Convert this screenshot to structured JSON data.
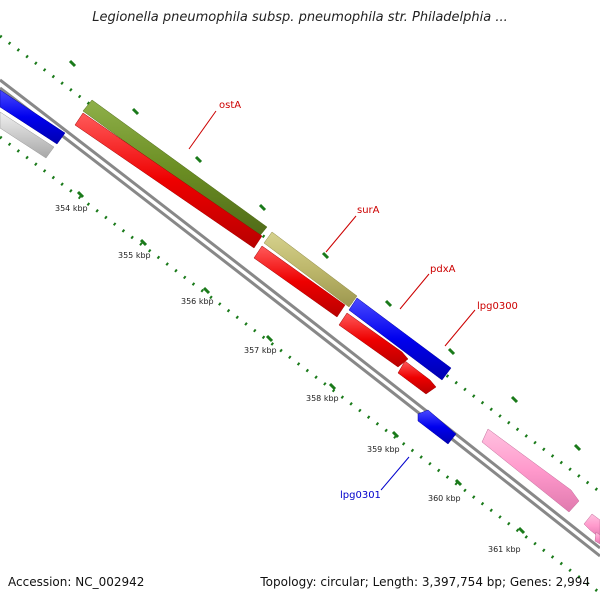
{
  "header": {
    "title": "Legionella pneumophila subsp. pneumophila str. Philadelphia ..."
  },
  "footer": {
    "accession": "Accession: NC_002942",
    "topology": "Topology: circular; Length: 3,397,754 bp; Genes: 2,994"
  },
  "ticks": [
    {
      "label": "354 kbp"
    },
    {
      "label": "355 kbp"
    },
    {
      "label": "356 kbp"
    },
    {
      "label": "357 kbp"
    },
    {
      "label": "358 kbp"
    },
    {
      "label": "359 kbp"
    },
    {
      "label": "360 kbp"
    },
    {
      "label": "361 kbp"
    }
  ],
  "genes": [
    {
      "name": "ostA",
      "color": "#cc0000"
    },
    {
      "name": "surA",
      "color": "#cc0000"
    },
    {
      "name": "pdxA",
      "color": "#cc0000"
    },
    {
      "name": "lpg0300",
      "color": "#cc0000"
    },
    {
      "name": "lpg0301",
      "color": "#0000cc"
    }
  ],
  "colors": {
    "red": "#ee0000",
    "blue": "#0000ee",
    "olive": "#6b8e23",
    "khaki": "#bdb76b",
    "pink": "#ff99cc",
    "gray": "#cccccc",
    "backbone": "#888888",
    "tick": "#1a7a1a"
  }
}
